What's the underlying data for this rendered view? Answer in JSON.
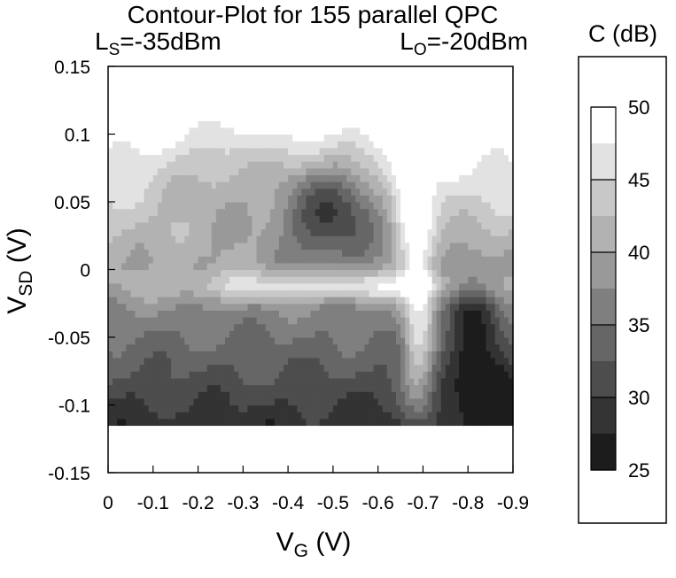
{
  "chart_data": {
    "type": "heatmap",
    "title": "Contour-Plot for 155 parallel QPC",
    "subtitle_left": {
      "base": "L",
      "sub": "S",
      "rest": "=-35dBm"
    },
    "subtitle_right": {
      "base": "L",
      "sub": "O",
      "rest": "=-20dBm"
    },
    "xlabel": {
      "base": "V",
      "sub": "G",
      "rest": " (V)"
    },
    "ylabel": {
      "base": "V",
      "sub": "SD",
      "rest": " (V)"
    },
    "xlim": [
      0,
      -0.9
    ],
    "ylim": [
      -0.15,
      0.15
    ],
    "xticks": [
      "0",
      "-0.1",
      "-0.2",
      "-0.3",
      "-0.4",
      "-0.5",
      "-0.6",
      "-0.7",
      "-0.8",
      "-0.9"
    ],
    "yticks": [
      "0.15",
      "0.1",
      "0.05",
      "0",
      "-0.05",
      "-0.1",
      "-0.15"
    ],
    "data_extent": {
      "x": [
        0,
        -0.9
      ],
      "y": [
        -0.115,
        0.115
      ]
    },
    "colorbar": {
      "label": "C (dB)",
      "range": [
        25,
        50
      ],
      "ticks": [
        "50",
        "45",
        "40",
        "35",
        "30",
        "25"
      ],
      "levels": [
        {
          "from": 25.0,
          "to": 27.5,
          "color": "#1c1c1c"
        },
        {
          "from": 27.5,
          "to": 30.0,
          "color": "#333333"
        },
        {
          "from": 30.0,
          "to": 32.5,
          "color": "#4d4d4d"
        },
        {
          "from": 32.5,
          "to": 35.0,
          "color": "#666666"
        },
        {
          "from": 35.0,
          "to": 37.5,
          "color": "#7f7f7f"
        },
        {
          "from": 37.5,
          "to": 40.0,
          "color": "#999999"
        },
        {
          "from": 40.0,
          "to": 42.5,
          "color": "#b2b2b2"
        },
        {
          "from": 42.5,
          "to": 45.0,
          "color": "#c8c8c8"
        },
        {
          "from": 45.0,
          "to": 47.5,
          "color": "#e2e2e2"
        },
        {
          "from": 47.5,
          "to": 50.0,
          "color": "#ffffff"
        }
      ]
    },
    "features": [
      {
        "kind": "valley",
        "x": -0.5,
        "y": 0.045,
        "rx": 0.12,
        "ry": 0.04,
        "depth": 14
      },
      {
        "kind": "valley",
        "x": -0.8,
        "y": -0.03,
        "rx": 0.06,
        "ry": 0.04,
        "depth": 9
      },
      {
        "kind": "valley",
        "x": -0.85,
        "y": -0.09,
        "rx": 0.06,
        "ry": 0.035,
        "depth": 9
      },
      {
        "kind": "ridge",
        "x": -0.5,
        "y": -0.012,
        "rx": 0.35,
        "ry": 0.011,
        "height": 9
      },
      {
        "kind": "ridge",
        "x": -0.69,
        "y": -0.04,
        "rx": 0.035,
        "ry": 0.075,
        "height": 11
      },
      {
        "kind": "ridge",
        "x": -0.67,
        "y": 0.07,
        "rx": 0.04,
        "ry": 0.05,
        "height": 8
      },
      {
        "kind": "valley",
        "x": -0.25,
        "y": 0.07,
        "rx": 0.15,
        "ry": 0.045,
        "depth": 5
      }
    ]
  }
}
